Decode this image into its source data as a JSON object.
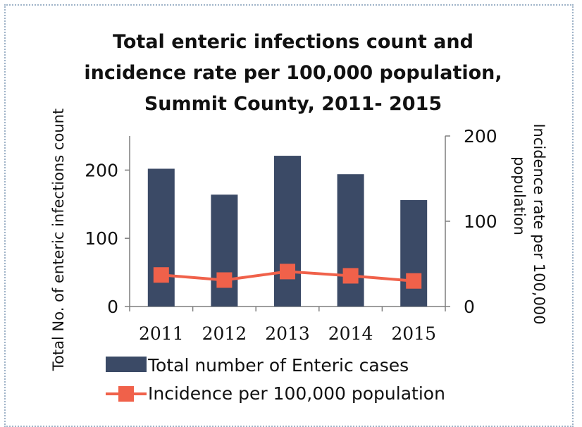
{
  "chart_data": {
    "type": "bar",
    "title_lines": [
      "Total enteric infections count and",
      "incidence rate per 100,000 population,",
      "Summit County, 2011- 2015"
    ],
    "categories": [
      "2011",
      "2012",
      "2013",
      "2014",
      "2015"
    ],
    "series": [
      {
        "name": "Total number of Enteric cases",
        "type": "bar",
        "axis": "left",
        "color": "#3b4a66",
        "values": [
          202,
          164,
          221,
          194,
          156
        ]
      },
      {
        "name": "Incidence per 100,000 population",
        "type": "line",
        "axis": "right",
        "color": "#f0614a",
        "values": [
          37,
          31,
          41,
          36,
          30
        ]
      }
    ],
    "ylabel": "Total No. of enteric infections count",
    "y2label_lines": [
      "Incidence rate per 100,000",
      "population"
    ],
    "ylim": [
      0,
      250
    ],
    "y2lim": [
      0,
      200
    ],
    "yticks": [
      0,
      100,
      200
    ],
    "y2ticks": [
      0,
      100,
      200
    ],
    "grid": false,
    "legend": "bottom"
  }
}
